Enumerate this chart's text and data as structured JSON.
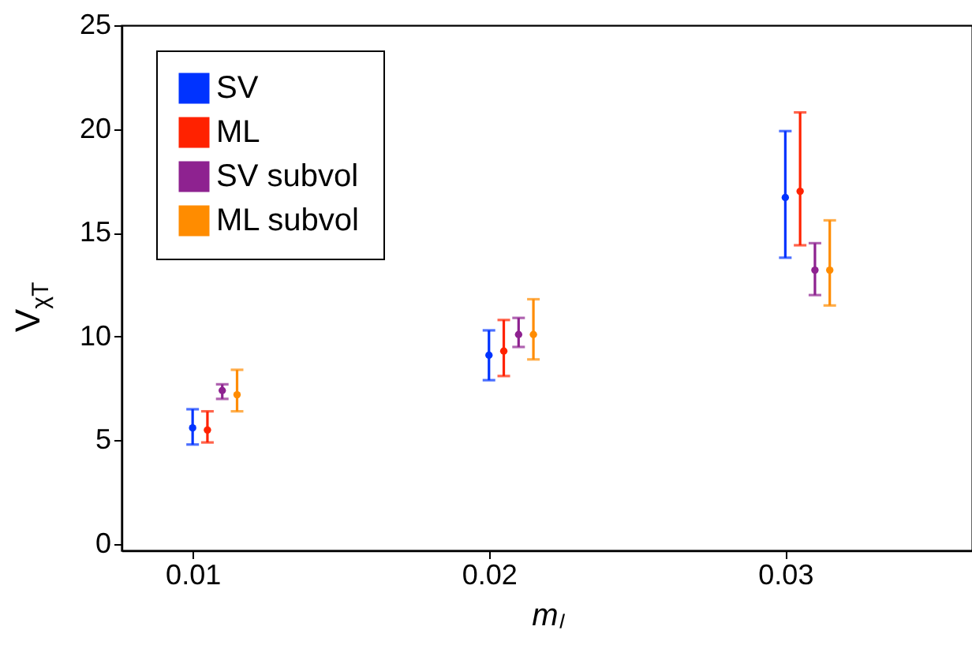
{
  "chart_data": {
    "type": "scatter",
    "xlabel": "mₗ",
    "ylabel": "V$_{χT}$",
    "xlim": [
      0.0076,
      0.0363
    ],
    "xticks": [
      0.01,
      0.02,
      0.03
    ],
    "ylim": [
      -0.3,
      25
    ],
    "yticks": [
      0,
      5,
      10,
      15,
      20,
      25
    ],
    "grid": false,
    "legend": "top left",
    "marker": "circle",
    "series": [
      {
        "name": "SV",
        "color": "#0033ff",
        "x": [
          0.01,
          0.02,
          0.03
        ],
        "values": [
          5.6,
          9.1,
          16.7
        ],
        "errors": [
          [
            4.8,
            6.5
          ],
          [
            7.9,
            10.3
          ],
          [
            13.8,
            19.9
          ]
        ]
      },
      {
        "name": "ML",
        "color": "#ff2200",
        "x": [
          0.0105,
          0.0205,
          0.0305
        ],
        "values": [
          5.5,
          9.3,
          17.0
        ],
        "errors": [
          [
            4.9,
            6.4
          ],
          [
            8.1,
            10.8
          ],
          [
            14.4,
            20.8
          ]
        ]
      },
      {
        "name": "SV subvol",
        "color": "#8e2290",
        "x": [
          0.011,
          0.021,
          0.031
        ],
        "values": [
          7.4,
          10.1,
          13.2
        ],
        "errors": [
          [
            7.0,
            7.7
          ],
          [
            9.5,
            10.9
          ],
          [
            12.0,
            14.5
          ]
        ]
      },
      {
        "name": "ML subvol",
        "color": "#ff8c00",
        "x": [
          0.0115,
          0.0215,
          0.0315
        ],
        "values": [
          7.2,
          10.1,
          13.2
        ],
        "errors": [
          [
            6.4,
            8.4
          ],
          [
            8.9,
            11.8
          ],
          [
            11.5,
            15.6
          ]
        ]
      }
    ]
  }
}
